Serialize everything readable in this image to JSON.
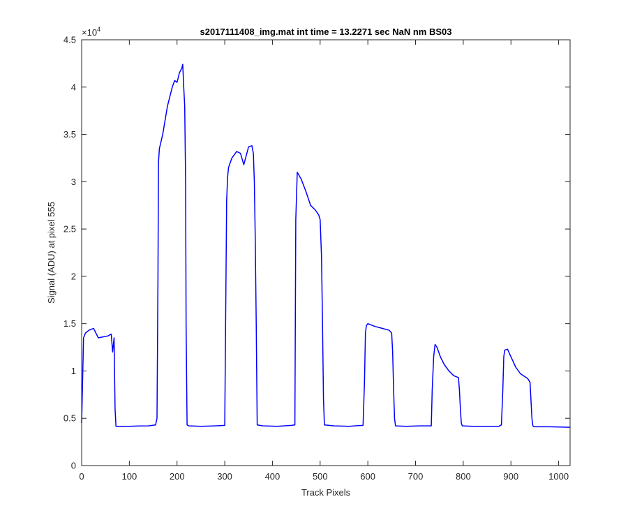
{
  "chart_data": {
    "type": "line",
    "title": "s2017111408_img.mat int time = 13.2271 sec  NaN nm BS03",
    "xlabel": "Track Pixels",
    "ylabel": "Signal (ADU) at pixel 555",
    "xlim": [
      0,
      1024
    ],
    "ylim": [
      0,
      45000
    ],
    "xticks": [
      0,
      100,
      200,
      300,
      400,
      500,
      600,
      700,
      800,
      900,
      1000
    ],
    "xtick_labels": [
      "0",
      "100",
      "200",
      "300",
      "400",
      "500",
      "600",
      "700",
      "800",
      "900",
      "1000"
    ],
    "yticks": [
      0,
      5000,
      10000,
      15000,
      20000,
      25000,
      30000,
      35000,
      40000,
      45000
    ],
    "ytick_labels": [
      "0",
      "0.5",
      "1",
      "1.5",
      "2",
      "2.5",
      "3",
      "3.5",
      "4",
      "4.5"
    ],
    "y_exponent_base": "×10",
    "y_exponent": "4",
    "grid": false,
    "series": [
      {
        "color": "#0000ff",
        "x": [
          0,
          2,
          4,
          8,
          15,
          25,
          35,
          45,
          55,
          62,
          65,
          68,
          70,
          72,
          80,
          100,
          120,
          140,
          155,
          158,
          160,
          161,
          163,
          170,
          180,
          190,
          195,
          200,
          205,
          210,
          212,
          214,
          216,
          218,
          219,
          221,
          225,
          250,
          280,
          300,
          304,
          306,
          308,
          315,
          325,
          333,
          340,
          350,
          357,
          360,
          362,
          364,
          366,
          368,
          380,
          410,
          440,
          447,
          449,
          452,
          460,
          470,
          480,
          490,
          497,
          500,
          503,
          505,
          507,
          509,
          530,
          560,
          590,
          593,
          595,
          597,
          600,
          615,
          630,
          645,
          650,
          652,
          654,
          656,
          658,
          680,
          710,
          733,
          735,
          738,
          741,
          745,
          752,
          760,
          770,
          780,
          790,
          792,
          794,
          796,
          798,
          820,
          850,
          875,
          880,
          883,
          885,
          887,
          893,
          900,
          910,
          920,
          935,
          940,
          942,
          944,
          946,
          948,
          980,
          1024
        ],
        "y": [
          4500,
          9000,
          13500,
          14000,
          14300,
          14500,
          13500,
          13600,
          13700,
          13900,
          12000,
          13500,
          6000,
          4150,
          4150,
          4150,
          4180,
          4200,
          4300,
          5000,
          20000,
          32000,
          33500,
          35000,
          38000,
          40000,
          40700,
          40500,
          41500,
          42000,
          42400,
          40000,
          38000,
          30000,
          15000,
          4300,
          4200,
          4150,
          4200,
          4250,
          28000,
          30500,
          31500,
          32500,
          33200,
          33000,
          31800,
          33700,
          33800,
          33000,
          30000,
          24000,
          15000,
          4300,
          4200,
          4150,
          4250,
          4300,
          26000,
          31000,
          30300,
          29000,
          27500,
          27000,
          26500,
          26000,
          22000,
          15000,
          7000,
          4300,
          4200,
          4150,
          4250,
          9000,
          14000,
          14800,
          15000,
          14700,
          14500,
          14300,
          14000,
          12000,
          8000,
          5000,
          4200,
          4150,
          4200,
          4200,
          8000,
          11500,
          12800,
          12500,
          11500,
          10700,
          10000,
          9500,
          9300,
          8000,
          6000,
          4500,
          4200,
          4150,
          4150,
          4150,
          4300,
          8000,
          11500,
          12200,
          12300,
          11500,
          10400,
          9700,
          9200,
          8800,
          7000,
          5000,
          4200,
          4100,
          4100,
          4050
        ]
      }
    ]
  }
}
